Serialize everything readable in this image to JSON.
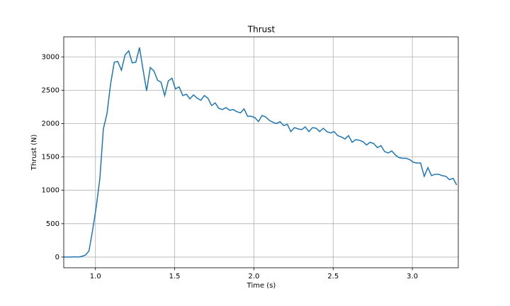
{
  "chart_data": {
    "type": "line",
    "title": "Thrust",
    "x_label": "Time (s)",
    "y_label": "Thrust (N)",
    "x": [
      0.8,
      0.823,
      0.846,
      0.868,
      0.891,
      0.914,
      0.937,
      0.959,
      0.982,
      1.005,
      1.028,
      1.05,
      1.073,
      1.096,
      1.119,
      1.141,
      1.164,
      1.187,
      1.21,
      1.232,
      1.255,
      1.278,
      1.301,
      1.323,
      1.346,
      1.369,
      1.392,
      1.414,
      1.437,
      1.46,
      1.483,
      1.505,
      1.528,
      1.551,
      1.574,
      1.596,
      1.619,
      1.642,
      1.665,
      1.687,
      1.71,
      1.733,
      1.756,
      1.778,
      1.801,
      1.824,
      1.847,
      1.869,
      1.892,
      1.915,
      1.938,
      1.96,
      1.983,
      2.006,
      2.029,
      2.051,
      2.074,
      2.097,
      2.12,
      2.142,
      2.165,
      2.188,
      2.211,
      2.233,
      2.256,
      2.279,
      2.302,
      2.324,
      2.347,
      2.37,
      2.393,
      2.415,
      2.438,
      2.461,
      2.484,
      2.506,
      2.529,
      2.552,
      2.575,
      2.597,
      2.62,
      2.643,
      2.666,
      2.688,
      2.711,
      2.734,
      2.757,
      2.779,
      2.802,
      2.825,
      2.848,
      2.87,
      2.893,
      2.916,
      2.939,
      2.961,
      2.984,
      3.007,
      3.03,
      3.052,
      3.075,
      3.098,
      3.121,
      3.143,
      3.166,
      3.189,
      3.212,
      3.234,
      3.257,
      3.28
    ],
    "series": [
      {
        "name": "Thrust",
        "color": "#1f77b4",
        "values": [
          0,
          0,
          0,
          5,
          0,
          10,
          30,
          90,
          400,
          750,
          1180,
          1920,
          2150,
          2600,
          2920,
          2930,
          2800,
          3030,
          3090,
          2910,
          2920,
          3140,
          2800,
          2490,
          2840,
          2790,
          2650,
          2620,
          2420,
          2640,
          2680,
          2520,
          2550,
          2420,
          2440,
          2370,
          2430,
          2380,
          2350,
          2420,
          2380,
          2270,
          2310,
          2230,
          2210,
          2240,
          2200,
          2210,
          2180,
          2160,
          2220,
          2110,
          2110,
          2090,
          2030,
          2120,
          2100,
          2050,
          2020,
          2000,
          2030,
          1970,
          1990,
          1880,
          1940,
          1920,
          1910,
          1950,
          1880,
          1940,
          1930,
          1880,
          1930,
          1880,
          1860,
          1880,
          1820,
          1800,
          1770,
          1820,
          1720,
          1760,
          1750,
          1730,
          1680,
          1720,
          1700,
          1640,
          1670,
          1580,
          1560,
          1590,
          1530,
          1490,
          1480,
          1480,
          1460,
          1420,
          1410,
          1410,
          1210,
          1340,
          1220,
          1240,
          1240,
          1220,
          1210,
          1160,
          1180,
          1080
        ]
      }
    ],
    "xlim": [
      0.8,
      3.29
    ],
    "ylim": [
      -160,
      3300
    ],
    "xticks": [
      {
        "value": 1.0,
        "label": "1.0"
      },
      {
        "value": 1.5,
        "label": "1.5"
      },
      {
        "value": 2.0,
        "label": "2.0"
      },
      {
        "value": 2.5,
        "label": "2.5"
      },
      {
        "value": 3.0,
        "label": "3.0"
      }
    ],
    "yticks": [
      0,
      500,
      1000,
      1500,
      2000,
      2500,
      3000
    ],
    "grid": true
  }
}
